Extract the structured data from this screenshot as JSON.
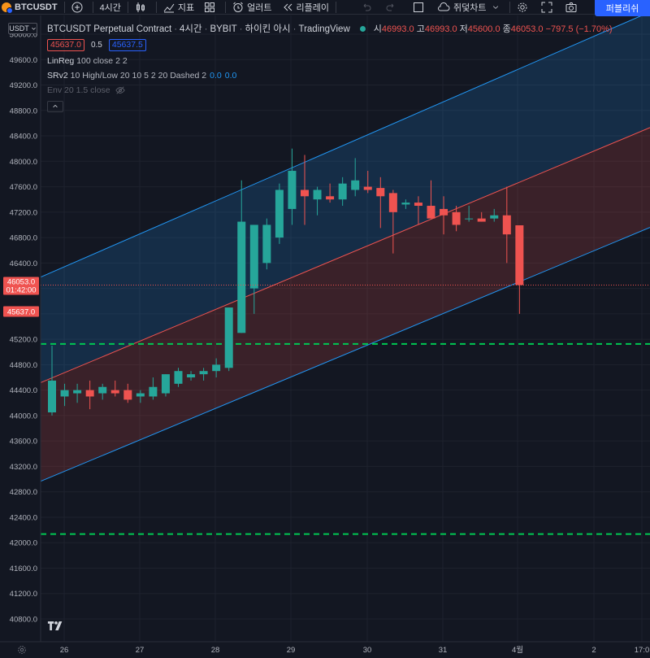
{
  "toolbar": {
    "symbol": "BTCUSDT",
    "interval": "4시간",
    "indicators": "지표",
    "alert": "얼러트",
    "replay": "리플레이",
    "chart_type": "쥐덫차트",
    "publish": "퍼블리쉬"
  },
  "legend": {
    "title": "BTCUSDT Perpetual Contract",
    "interval": "4시간",
    "exchange": "BYBIT",
    "session": "하이킨 아시",
    "source": "TradingView",
    "open_label": "시",
    "open": "46993.0",
    "high_label": "고",
    "high": "46993.0",
    "low_label": "저",
    "low": "45600.0",
    "close_label": "종",
    "close": "46053.0",
    "change": "−797.5 (−1.70%)",
    "sell_price": "45637.0",
    "spread": "0.5",
    "buy_price": "45637.5",
    "ind1_name": "LinReg",
    "ind1_args": "100 close 2 2",
    "ind2_name": "SRv2",
    "ind2_args": "10 High/Low 20 10 5 2 20 Dashed 2",
    "ind2_v1": "0.0",
    "ind2_v2": "0.0",
    "ind3_name": "Env",
    "ind3_args": "20 1.5 close"
  },
  "currency": "USDT",
  "colors": {
    "background": "#131722",
    "grid": "#1e222d",
    "up": "#26a69a",
    "down": "#ef5350",
    "channel_outer": "#2196f3",
    "channel_mid": "#ef5350",
    "support": "#00c853",
    "accent": "#2962ff"
  },
  "chart_data": {
    "type": "candlestick",
    "price_axis": {
      "min": 40500,
      "max": 50000,
      "ticks": [
        "50000.0",
        "49600.0",
        "49200.0",
        "48800.0",
        "48400.0",
        "48000.0",
        "47600.0",
        "47200.0",
        "46800.0",
        "46400.0",
        "46000.0",
        "45600.0",
        "45200.0",
        "44800.0",
        "44400.0",
        "44000.0",
        "43600.0",
        "43200.0",
        "42800.0",
        "42400.0",
        "42000.0",
        "41600.0",
        "41200.0",
        "40800.0"
      ]
    },
    "time_axis": {
      "labels": [
        "26",
        "27",
        "28",
        "29",
        "30",
        "31",
        "4월",
        "2",
        "17:0"
      ]
    },
    "last_price": {
      "value": "46053.0",
      "countdown": "01:42:00"
    },
    "bid_label": "45637.0",
    "support_levels": [
      45127,
      42135
    ],
    "channel": {
      "upper": [
        [
          0,
          45900
        ],
        [
          800,
          50350
        ]
      ],
      "middle": [
        [
          0,
          44250
        ],
        [
          800,
          48530
        ]
      ],
      "lower": [
        [
          0,
          42700
        ],
        [
          800,
          46960
        ]
      ]
    },
    "candles": [
      {
        "o": 44050,
        "h": 45100,
        "l": 44000,
        "c": 44550
      },
      {
        "o": 44300,
        "h": 44500,
        "l": 44150,
        "c": 44400
      },
      {
        "o": 44350,
        "h": 44500,
        "l": 44200,
        "c": 44400
      },
      {
        "o": 44400,
        "h": 44550,
        "l": 44100,
        "c": 44300
      },
      {
        "o": 44350,
        "h": 44500,
        "l": 44250,
        "c": 44450
      },
      {
        "o": 44400,
        "h": 44550,
        "l": 44300,
        "c": 44350
      },
      {
        "o": 44400,
        "h": 44500,
        "l": 44200,
        "c": 44250
      },
      {
        "o": 44300,
        "h": 44400,
        "l": 44200,
        "c": 44350
      },
      {
        "o": 44300,
        "h": 44600,
        "l": 44250,
        "c": 44450
      },
      {
        "o": 44350,
        "h": 44650,
        "l": 44300,
        "c": 44650
      },
      {
        "o": 44500,
        "h": 44750,
        "l": 44450,
        "c": 44700
      },
      {
        "o": 44600,
        "h": 44700,
        "l": 44550,
        "c": 44650
      },
      {
        "o": 44650,
        "h": 44750,
        "l": 44550,
        "c": 44700
      },
      {
        "o": 44700,
        "h": 44900,
        "l": 44600,
        "c": 44800
      },
      {
        "o": 44750,
        "h": 45700,
        "l": 44700,
        "c": 45700
      },
      {
        "o": 45300,
        "h": 47700,
        "l": 45300,
        "c": 47050
      },
      {
        "o": 46000,
        "h": 47000,
        "l": 45600,
        "c": 47000
      },
      {
        "o": 46400,
        "h": 47100,
        "l": 46300,
        "c": 47000
      },
      {
        "o": 46800,
        "h": 47650,
        "l": 46700,
        "c": 47550
      },
      {
        "o": 47250,
        "h": 48200,
        "l": 47000,
        "c": 47850
      },
      {
        "o": 47550,
        "h": 48100,
        "l": 47000,
        "c": 47450
      },
      {
        "o": 47400,
        "h": 47600,
        "l": 47150,
        "c": 47550
      },
      {
        "o": 47450,
        "h": 47650,
        "l": 47350,
        "c": 47400
      },
      {
        "o": 47400,
        "h": 47750,
        "l": 47300,
        "c": 47650
      },
      {
        "o": 47550,
        "h": 48050,
        "l": 47450,
        "c": 47700
      },
      {
        "o": 47600,
        "h": 47850,
        "l": 47500,
        "c": 47550
      },
      {
        "o": 47580,
        "h": 47750,
        "l": 46950,
        "c": 47450
      },
      {
        "o": 47500,
        "h": 47550,
        "l": 46550,
        "c": 47200
      },
      {
        "o": 47320,
        "h": 47400,
        "l": 47250,
        "c": 47350
      },
      {
        "o": 47350,
        "h": 47450,
        "l": 47000,
        "c": 47300
      },
      {
        "o": 47300,
        "h": 47700,
        "l": 47100,
        "c": 47100
      },
      {
        "o": 47250,
        "h": 47450,
        "l": 46850,
        "c": 47150
      },
      {
        "o": 47200,
        "h": 47300,
        "l": 46900,
        "c": 47000
      },
      {
        "o": 47100,
        "h": 47300,
        "l": 47050,
        "c": 47100
      },
      {
        "o": 47100,
        "h": 47200,
        "l": 47050,
        "c": 47050
      },
      {
        "o": 47100,
        "h": 47250,
        "l": 47050,
        "c": 47150
      },
      {
        "o": 47150,
        "h": 47600,
        "l": 46400,
        "c": 46850
      },
      {
        "o": 46993,
        "h": 46993,
        "l": 45600,
        "c": 46053
      }
    ]
  }
}
